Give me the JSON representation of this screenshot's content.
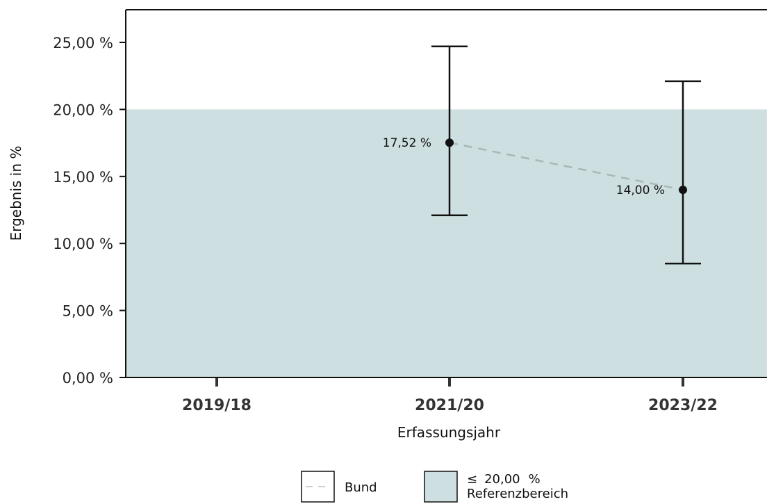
{
  "chart_data": {
    "type": "line",
    "title": "",
    "xlabel": "Erfassungsjahr",
    "ylabel": "Ergebnis in %",
    "categories": [
      "2019/18",
      "2021/20",
      "2023/22"
    ],
    "ylim": [
      0,
      25
    ],
    "yticks": [
      "0,00 %",
      "5,00 %",
      "10,00 %",
      "15,00 %",
      "20,00 %",
      "25,00 %"
    ],
    "ytick_values": [
      0,
      5,
      10,
      15,
      20,
      25
    ],
    "series": [
      {
        "name": "Bund",
        "points": [
          {
            "category": "2021/20",
            "value": 17.52,
            "label": "17,52 %",
            "ci_low": 12.1,
            "ci_high": 24.7
          },
          {
            "category": "2023/22",
            "value": 14.0,
            "label": "14,00 %",
            "ci_low": 8.5,
            "ci_high": 22.1
          }
        ],
        "color": "#a8b8b3"
      }
    ],
    "reference_range": {
      "max": 20,
      "color": "#cddfe0"
    },
    "legend": {
      "placement": "bottom",
      "items": [
        {
          "label": "Bund",
          "style": "dashed-line"
        },
        {
          "symbol": "≤",
          "value": "20,00",
          "unit": "%",
          "label": "Referenzbereich",
          "style": "filled-box"
        }
      ]
    },
    "grid": false
  }
}
